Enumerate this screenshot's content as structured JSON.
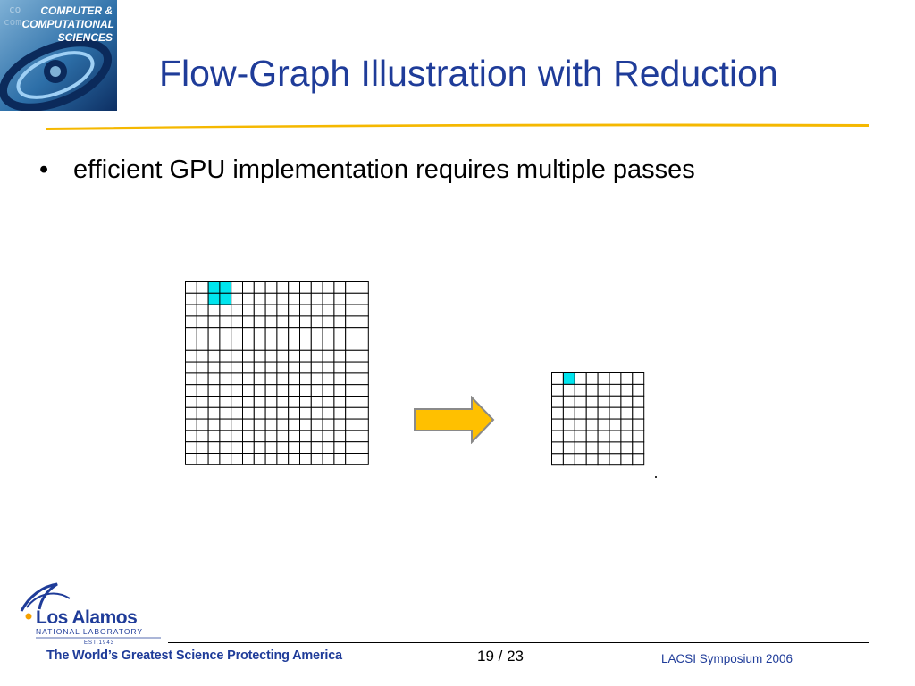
{
  "slide": {
    "title": "Flow-Graph Illustration with Reduction",
    "bullets": [
      {
        "marker": "•",
        "text": "efficient GPU implementation requires multiple passes"
      }
    ]
  },
  "header_logo": {
    "lines": [
      "COMPUTER &",
      "COMPUTATIONAL",
      "SCIENCES"
    ]
  },
  "figure": {
    "large_grid": {
      "rows": 16,
      "cols": 16,
      "highlighted_cells": [
        [
          0,
          2
        ],
        [
          0,
          3
        ],
        [
          1,
          2
        ],
        [
          1,
          3
        ]
      ]
    },
    "small_grid": {
      "rows": 8,
      "cols": 8,
      "highlighted_cells": [
        [
          0,
          1
        ]
      ]
    },
    "arrow_icon": "right-arrow-icon"
  },
  "footer": {
    "lab_logo": {
      "name": "Los Alamos",
      "subtitle": "NATIONAL LABORATORY",
      "est": "EST.1943"
    },
    "tagline": "The World’s Greatest Science Protecting America",
    "page": "19 / 23",
    "conference": "LACSI Symposium 2006"
  },
  "colors": {
    "title": "#1f3c99",
    "rule": "#f5b800",
    "highlight": "#00e5ee",
    "arrow_fill": "#ffc000",
    "arrow_stroke": "#8a8a8a"
  }
}
